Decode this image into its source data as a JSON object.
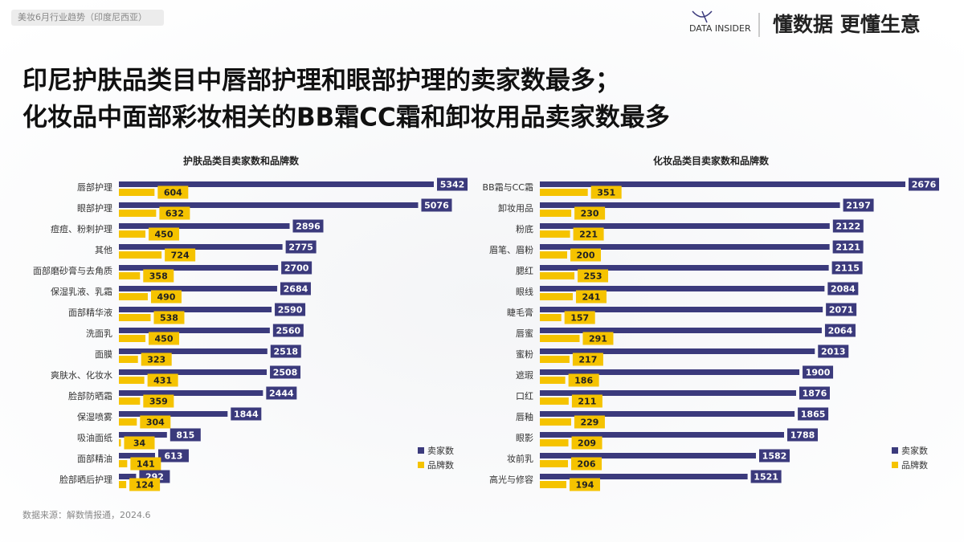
{
  "header": {
    "tag": "美妆6月行业趋势（印度尼西亚）",
    "logo": "DATA INSIDER",
    "slogan": "懂数据 更懂生意"
  },
  "title": [
    "印尼护肤品类目中唇部护理和眼部护理的卖家数最多；",
    "化妆品中面部彩妆相关的BB霜CC霜和卸妆用品卖家数最多"
  ],
  "chart_data": [
    {
      "type": "bar",
      "orientation": "horizontal",
      "title": "护肤品类目卖家数和品牌数",
      "categories": [
        "唇部护理",
        "眼部护理",
        "痘痘、粉刺护理",
        "其他",
        "面部磨砂膏与去角质",
        "保湿乳液、乳霜",
        "面部精华液",
        "洗面乳",
        "面膜",
        "爽肤水、化妆水",
        "脸部防晒霜",
        "保湿喷雾",
        "吸油面纸",
        "面部精油",
        "脸部晒后护理"
      ],
      "series": [
        {
          "name": "卖家数",
          "color": "#3b3a7c",
          "values": [
            5342,
            5076,
            2896,
            2775,
            2700,
            2684,
            2590,
            2560,
            2518,
            2508,
            2444,
            1844,
            815,
            613,
            292
          ]
        },
        {
          "name": "品牌数",
          "color": "#f5c300",
          "values": [
            604,
            632,
            450,
            724,
            358,
            490,
            538,
            450,
            323,
            431,
            359,
            304,
            34,
            141,
            124
          ]
        }
      ],
      "legend": "lower right"
    },
    {
      "type": "bar",
      "orientation": "horizontal",
      "title": "化妆品类目卖家数和品牌数",
      "categories": [
        "BB霜与CC霜",
        "卸妆用品",
        "粉底",
        "眉笔、眉粉",
        "腮红",
        "眼线",
        "睫毛膏",
        "唇蜜",
        "蜜粉",
        "遮瑕",
        "口红",
        "唇釉",
        "眼影",
        "妆前乳",
        "高光与修容"
      ],
      "series": [
        {
          "name": "卖家数",
          "color": "#3b3a7c",
          "values": [
            2676,
            2197,
            2122,
            2121,
            2115,
            2084,
            2071,
            2064,
            2013,
            1900,
            1876,
            1865,
            1788,
            1582,
            1521
          ]
        },
        {
          "name": "品牌数",
          "color": "#f5c300",
          "values": [
            351,
            230,
            221,
            200,
            253,
            241,
            157,
            291,
            217,
            186,
            211,
            229,
            209,
            206,
            194
          ]
        }
      ],
      "legend": "lower right"
    }
  ],
  "source": "数据来源：解数情报通，2024.6"
}
